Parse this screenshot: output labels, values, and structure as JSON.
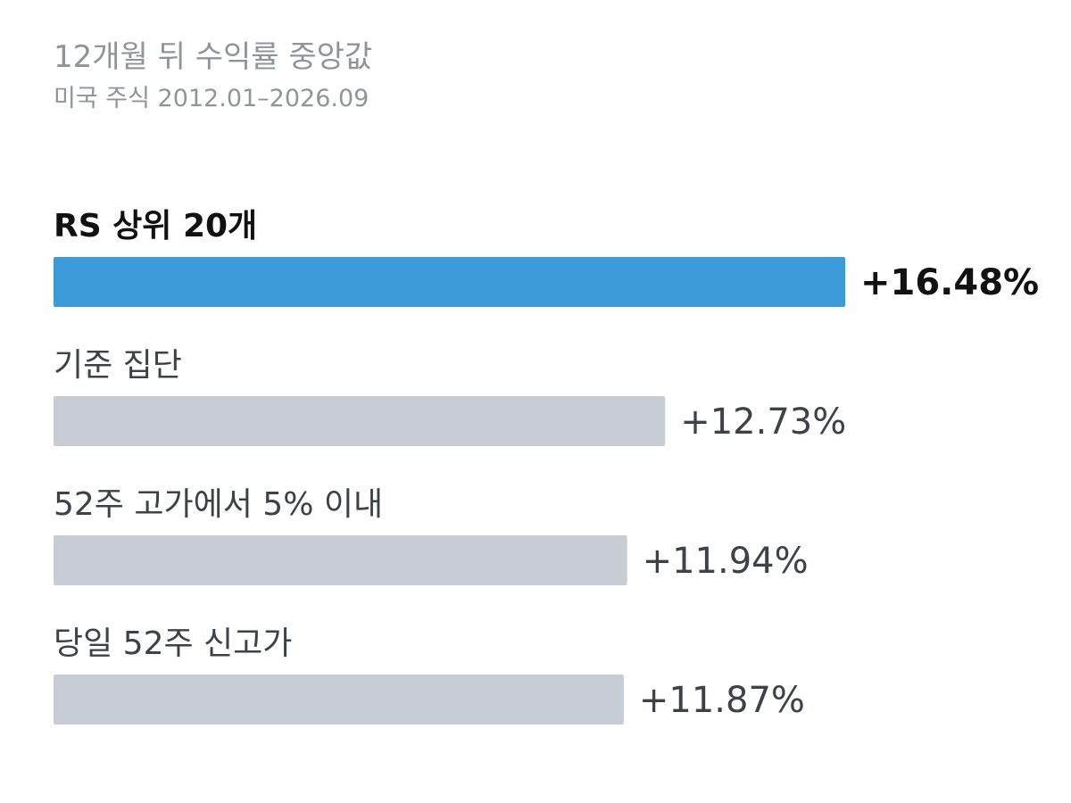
{
  "chart_data": {
    "type": "bar",
    "orientation": "horizontal",
    "title": "12개월 뒤 수익률 중앙값",
    "subtitle": "미국 주식 2012.01–2026.09",
    "categories": [
      "RS 상위 20개",
      "기준 집단",
      "52주 고가에서 5% 이내",
      "당일 52주 신고가"
    ],
    "values": [
      16.48,
      12.73,
      11.94,
      11.87
    ],
    "value_labels": [
      "+16.48%",
      "+12.73%",
      "+11.94%",
      "+11.87%"
    ],
    "highlight_index": 0,
    "xlim": [
      0,
      16.48
    ],
    "grid": false,
    "colors": {
      "highlight": "#3d9ad8",
      "default": "#c8ccd4"
    }
  }
}
